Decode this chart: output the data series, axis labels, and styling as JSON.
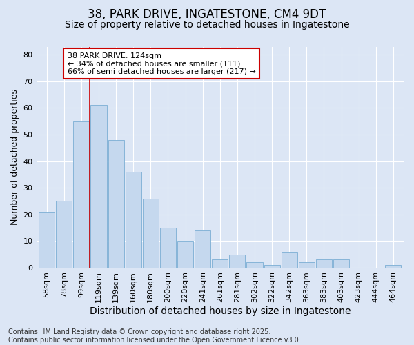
{
  "title": "38, PARK DRIVE, INGATESTONE, CM4 9DT",
  "subtitle": "Size of property relative to detached houses in Ingatestone",
  "xlabel": "Distribution of detached houses by size in Ingatestone",
  "ylabel": "Number of detached properties",
  "footer_line1": "Contains HM Land Registry data © Crown copyright and database right 2025.",
  "footer_line2": "Contains public sector information licensed under the Open Government Licence v3.0.",
  "categories": [
    "58sqm",
    "78sqm",
    "99sqm",
    "119sqm",
    "139sqm",
    "160sqm",
    "180sqm",
    "200sqm",
    "220sqm",
    "241sqm",
    "261sqm",
    "281sqm",
    "302sqm",
    "322sqm",
    "342sqm",
    "363sqm",
    "383sqm",
    "403sqm",
    "423sqm",
    "444sqm",
    "464sqm"
  ],
  "values": [
    21,
    25,
    55,
    61,
    48,
    36,
    26,
    15,
    10,
    14,
    3,
    5,
    2,
    1,
    6,
    2,
    3,
    3,
    0,
    0,
    1
  ],
  "bar_color": "#c5d8ee",
  "bar_edge_color": "#7aaed4",
  "background_color": "#dce6f5",
  "grid_color": "#ffffff",
  "red_line_x": 2.5,
  "annotation_text": "38 PARK DRIVE: 124sqm\n← 34% of detached houses are smaller (111)\n66% of semi-detached houses are larger (217) →",
  "annotation_box_color": "#ffffff",
  "annotation_box_edge_color": "#cc0000",
  "annotation_text_color": "#000000",
  "red_line_color": "#cc0000",
  "ylim": [
    0,
    83
  ],
  "yticks": [
    0,
    10,
    20,
    30,
    40,
    50,
    60,
    70,
    80
  ],
  "title_fontsize": 12,
  "subtitle_fontsize": 10,
  "xlabel_fontsize": 10,
  "ylabel_fontsize": 9,
  "tick_fontsize": 8,
  "annot_fontsize": 8,
  "footer_fontsize": 7
}
